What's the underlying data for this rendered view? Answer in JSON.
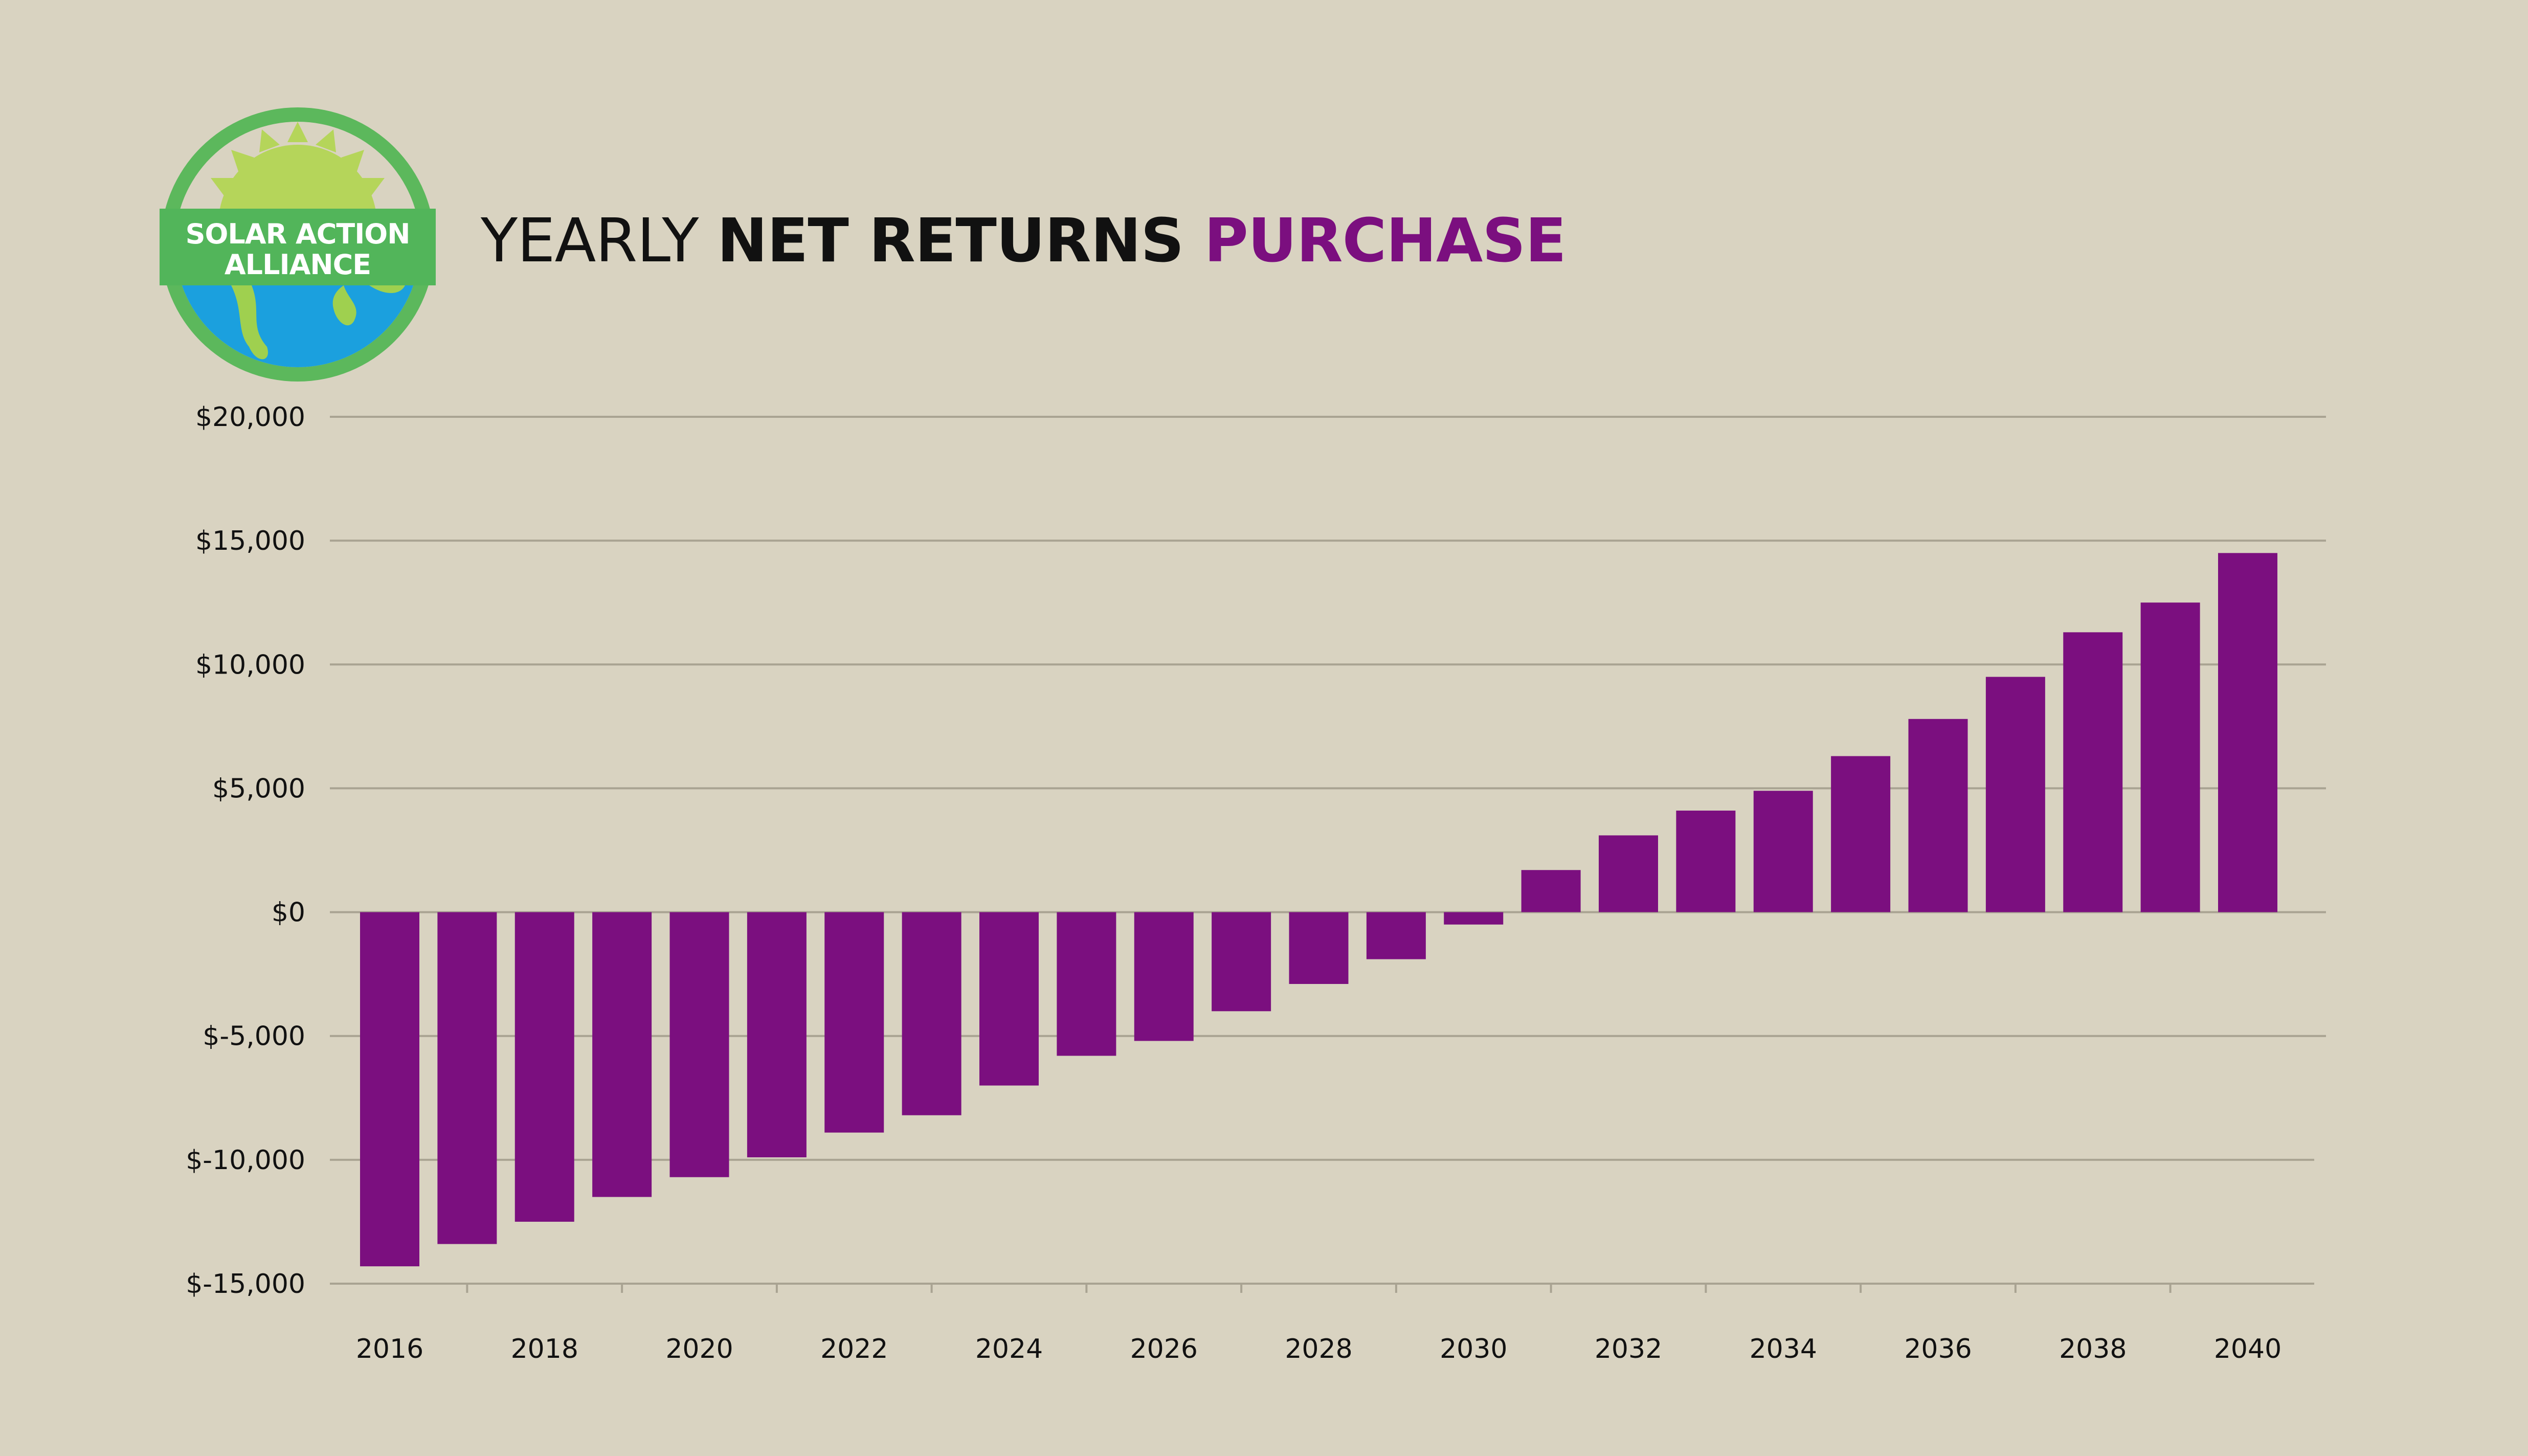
{
  "logo": {
    "line1": "SOLAR ACTION",
    "line2": "ALLIANCE",
    "icon": "sun-over-earth-icon",
    "colors": {
      "ring": "#5cb85c",
      "sun": "#b5d55a",
      "ocean": "#1ba0de",
      "land": "#9fd04f",
      "banner": "#52b55a"
    }
  },
  "title": {
    "part1": "YEARLY ",
    "part2": "NET RETURNS ",
    "part3": "PURCHASE",
    "colors": {
      "part1": "#111111",
      "part2": "#111111",
      "part3": "#7b0f7f"
    }
  },
  "chart_data": {
    "type": "bar",
    "title": "YEARLY NET RETURNS PURCHASE",
    "xlabel": "",
    "ylabel": "",
    "categories": [
      "2016",
      "2017",
      "2018",
      "2019",
      "2020",
      "2021",
      "2022",
      "2023",
      "2024",
      "2025",
      "2026",
      "2027",
      "2028",
      "2029",
      "2030",
      "2031",
      "2032",
      "2033",
      "2034",
      "2035",
      "2036",
      "2037",
      "2038",
      "2039",
      "2040"
    ],
    "x_tick_labels": [
      "2016",
      "2018",
      "2020",
      "2022",
      "2024",
      "2026",
      "2028",
      "2030",
      "2032",
      "2034",
      "2036",
      "2038",
      "2040"
    ],
    "values": [
      -14300,
      -13400,
      -12500,
      -11500,
      -10700,
      -9900,
      -8900,
      -8200,
      -7000,
      -5800,
      -5200,
      -4000,
      -2900,
      -1900,
      -500,
      1700,
      3100,
      4100,
      4900,
      6300,
      7800,
      9500,
      11300,
      12500,
      14500
    ],
    "ylim": [
      -15000,
      20000
    ],
    "y_ticks": [
      20000,
      15000,
      10000,
      5000,
      0,
      -5000,
      -10000,
      -15000
    ],
    "y_tick_labels": [
      "$20,000",
      "$15,000",
      "$10,000",
      "$5,000",
      "$0",
      "$-5,000",
      "$-10,000",
      "$-15,000"
    ],
    "grid": true,
    "bar_color": "#7b0f7f",
    "grid_color": "#a9a392"
  }
}
